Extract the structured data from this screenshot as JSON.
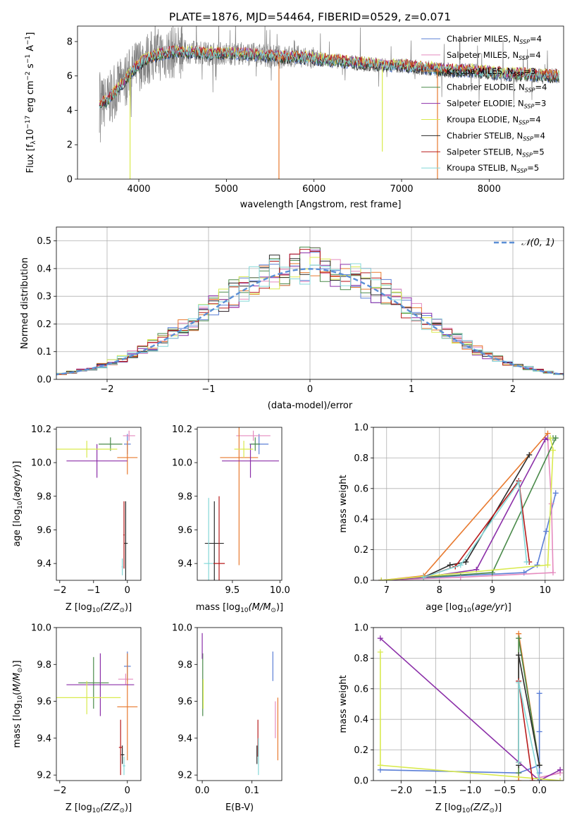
{
  "figure": {
    "title": "PLATE=1876, MJD=54464, FIBERID=0529, z=0.071"
  },
  "colors": {
    "ch_miles": "#5b7fd6",
    "sa_miles": "#e58bbf",
    "kr_miles": "#e87a2f",
    "ch_elodie": "#4a8a4a",
    "sa_elodie": "#8b2fa8",
    "kr_elodie": "#d9ea4e",
    "ch_stelib": "#2a2a2a",
    "sa_stelib": "#b81c1c",
    "kr_stelib": "#84d8d8",
    "data": "#808080",
    "normal": "#5b8fd6"
  },
  "legend": [
    {
      "key": "ch_miles",
      "prefix": "Chabrier MILES, N",
      "sub": "SSP",
      "suffix": "=4"
    },
    {
      "key": "sa_miles",
      "prefix": "Salpeter MILES, N",
      "sub": "SSP",
      "suffix": "=4"
    },
    {
      "key": "kr_miles",
      "prefix": "Kroupa MILES, N",
      "sub": "SSP",
      "suffix": "=3"
    },
    {
      "key": "ch_elodie",
      "prefix": "Chabrier ELODIE, N",
      "sub": "SSP",
      "suffix": "=4"
    },
    {
      "key": "sa_elodie",
      "prefix": "Salpeter ELODIE, N",
      "sub": "SSP",
      "suffix": "=3"
    },
    {
      "key": "kr_elodie",
      "prefix": "Kroupa ELODIE, N",
      "sub": "SSP",
      "suffix": "=4"
    },
    {
      "key": "ch_stelib",
      "prefix": "Chabrier STELIB, N",
      "sub": "SSP",
      "suffix": "=4"
    },
    {
      "key": "sa_stelib",
      "prefix": "Salpeter STELIB, N",
      "sub": "SSP",
      "suffix": "=5"
    },
    {
      "key": "kr_stelib",
      "prefix": "Kroupa STELIB, N",
      "sub": "SSP",
      "suffix": "=5"
    }
  ],
  "chart_data": [
    {
      "id": "spectrum",
      "type": "line",
      "xlabel": "wavelength [Angstrom, rest frame]",
      "ylabel": "Flux [f_λ 10^-17 erg cm^-2 s^-1 A^-1]",
      "xlim": [
        3300,
        8850
      ],
      "ylim": [
        0,
        8.9
      ],
      "xticks": [
        4000,
        5000,
        6000,
        7000,
        8000
      ],
      "yticks": [
        0,
        2,
        4,
        6,
        8
      ],
      "grid": false,
      "legend_position": "top-right",
      "model_continuum": {
        "x": [
          3550,
          3650,
          3750,
          3850,
          3950,
          4050,
          4200,
          4400,
          4600,
          4800,
          5000,
          5200,
          5400,
          5600,
          5800,
          6000,
          6200,
          6400,
          6600,
          6800,
          7000,
          7200,
          7400,
          7600,
          7800,
          8000,
          8200,
          8400,
          8600,
          8800
        ],
        "y": [
          4.3,
          4.6,
          5.2,
          5.8,
          6.4,
          6.9,
          7.2,
          7.4,
          7.4,
          7.3,
          7.3,
          7.3,
          7.2,
          7.1,
          7.1,
          7.0,
          6.9,
          6.8,
          6.7,
          6.6,
          6.6,
          6.5,
          6.4,
          6.3,
          6.3,
          6.2,
          6.1,
          6.1,
          6.0,
          6.0
        ]
      }
    },
    {
      "id": "residuals",
      "type": "histogram",
      "xlabel": "(data-model)/error",
      "ylabel": "Normed distribution",
      "xlim": [
        -2.5,
        2.5
      ],
      "ylim": [
        0,
        0.55
      ],
      "xticks": [
        -2,
        -1,
        0,
        1,
        2
      ],
      "yticks": [
        0.0,
        0.1,
        0.2,
        0.3,
        0.4,
        0.5
      ],
      "grid": true,
      "legend_position": "top-right",
      "reference_label": "𝒩(0, 1)",
      "bin_width": 0.1
    },
    {
      "id": "age_vs_z",
      "type": "scatter",
      "xlabel_prefix": "Z [log",
      "xlabel_suffix": "(Z/Z",
      "xlabel_end": ")]",
      "ylabel": "age  [log10(age/yr)]",
      "xlim": [
        -2.1,
        0.4
      ],
      "ylim": [
        9.3,
        10.21
      ],
      "xticks": [
        -2,
        -1,
        0
      ],
      "yticks": [
        9.4,
        9.6,
        9.8,
        10.0,
        10.2
      ],
      "grid": false,
      "points": [
        {
          "key": "ch_miles",
          "x": 0.0,
          "y": 10.11,
          "xerr": 0.1,
          "yerr": 0.06
        },
        {
          "key": "sa_miles",
          "x": 0.05,
          "y": 10.16,
          "xerr": 0.18,
          "yerr": 0.03
        },
        {
          "key": "kr_miles",
          "x": 0.0,
          "y": 10.03,
          "xerr": 0.3,
          "yerr": 0.1
        },
        {
          "key": "ch_elodie",
          "x": -0.5,
          "y": 10.11,
          "xerr": 0.35,
          "yerr": 0.04
        },
        {
          "key": "sa_elodie",
          "x": -0.9,
          "y": 10.01,
          "xerr": 0.9,
          "yerr": 0.1
        },
        {
          "key": "kr_elodie",
          "x": -1.2,
          "y": 10.08,
          "xerr": 0.9,
          "yerr": 0.05
        },
        {
          "key": "ch_stelib",
          "x": -0.05,
          "y": 9.52,
          "xerr": 0.06,
          "yerr": 0.25
        },
        {
          "key": "sa_stelib",
          "x": -0.1,
          "y": 9.57,
          "xerr": 0.02,
          "yerr": 0.2
        },
        {
          "key": "kr_stelib",
          "x": -0.15,
          "y": 9.38,
          "xerr": 0.02,
          "yerr": 0.05
        }
      ]
    },
    {
      "id": "age_vs_mass",
      "type": "scatter",
      "xlabel_prefix": "mass [log",
      "xlabel_suffix": "(M/M",
      "xlabel_end": ")]",
      "ylabel": "",
      "xlim": [
        9.13,
        10.02
      ],
      "ylim": [
        9.3,
        10.21
      ],
      "xticks": [
        9.5,
        10.0
      ],
      "yticks": [
        9.4,
        9.6,
        9.8,
        10.0,
        10.2
      ],
      "grid": false,
      "points": [
        {
          "key": "ch_miles",
          "x": 9.78,
          "y": 10.11,
          "xerr": 0.1,
          "yerr": 0.06
        },
        {
          "key": "sa_miles",
          "x": 9.72,
          "y": 10.16,
          "xerr": 0.18,
          "yerr": 0.03
        },
        {
          "key": "kr_miles",
          "x": 9.57,
          "y": 10.03,
          "xerr": 0.2,
          "yerr": 0.64
        },
        {
          "key": "ch_elodie",
          "x": 9.74,
          "y": 10.11,
          "xerr": 0.05,
          "yerr": 0.04
        },
        {
          "key": "sa_elodie",
          "x": 9.69,
          "y": 10.01,
          "xerr": 0.3,
          "yerr": 0.1
        },
        {
          "key": "kr_elodie",
          "x": 9.62,
          "y": 10.08,
          "xerr": 0.1,
          "yerr": 0.05
        },
        {
          "key": "ch_stelib",
          "x": 9.31,
          "y": 9.52,
          "xerr": 0.1,
          "yerr": 0.25
        },
        {
          "key": "sa_stelib",
          "x": 9.36,
          "y": 9.4,
          "xerr": 0.06,
          "yerr": 0.4
        },
        {
          "key": "kr_stelib",
          "x": 9.25,
          "y": 9.4,
          "xerr": 0.05,
          "yerr": 0.39
        }
      ]
    },
    {
      "id": "weight_vs_age",
      "type": "line",
      "xlabel": "age  [log10(age/yr)]",
      "ylabel": "mass weight",
      "xlim": [
        6.75,
        10.35
      ],
      "ylim": [
        0,
        1.0
      ],
      "xticks": [
        7,
        8,
        9,
        10
      ],
      "yticks": [
        0.0,
        0.2,
        0.4,
        0.6,
        0.8,
        1.0
      ],
      "grid": true,
      "series": [
        {
          "key": "ch_miles",
          "x": [
            6.9,
            8.4,
            9.6,
            9.85,
            10.02,
            10.2
          ],
          "y": [
            0.0,
            0.03,
            0.05,
            0.1,
            0.32,
            0.57
          ]
        },
        {
          "key": "sa_miles",
          "x": [
            6.9,
            8.4,
            10.15,
            10.12,
            10.05
          ],
          "y": [
            0.0,
            0.02,
            0.05,
            0.5,
            0.92
          ]
        },
        {
          "key": "kr_miles",
          "x": [
            6.9,
            7.7,
            10.05
          ],
          "y": [
            0.0,
            0.03,
            0.96
          ]
        },
        {
          "key": "ch_elodie",
          "x": [
            6.9,
            9.0,
            10.2,
            10.15
          ],
          "y": [
            0.0,
            0.05,
            0.93,
            0.93
          ]
        },
        {
          "key": "sa_elodie",
          "x": [
            6.9,
            7.7,
            8.7,
            10.0,
            10.05
          ],
          "y": [
            0.0,
            0.02,
            0.07,
            0.92,
            0.93
          ]
        },
        {
          "key": "kr_elodie",
          "x": [
            6.9,
            10.05,
            10.15,
            10.1
          ],
          "y": [
            0.0,
            0.1,
            0.85,
            0.93
          ]
        },
        {
          "key": "ch_stelib",
          "x": [
            7.7,
            8.2,
            8.5,
            9.7
          ],
          "y": [
            0.02,
            0.1,
            0.12,
            0.82
          ]
        },
        {
          "key": "sa_stelib",
          "x": [
            7.7,
            8.3,
            9.5,
            9.7
          ],
          "y": [
            0.02,
            0.09,
            0.65,
            0.12
          ]
        },
        {
          "key": "kr_stelib",
          "x": [
            7.7,
            8.4,
            9.5,
            9.65
          ],
          "y": [
            0.02,
            0.1,
            0.64,
            0.12
          ]
        }
      ]
    },
    {
      "id": "mass_vs_z",
      "type": "scatter",
      "xlabel_prefix": "Z [log",
      "xlabel_suffix": "(Z/Z",
      "xlabel_end": ")]",
      "ylabel": "mass [log10(M/M☉)]",
      "xlim": [
        -2.1,
        0.4
      ],
      "ylim": [
        9.17,
        10.0
      ],
      "xticks": [
        -2,
        0
      ],
      "yticks": [
        9.2,
        9.4,
        9.6,
        9.8,
        10.0
      ],
      "grid": false,
      "points": [
        {
          "key": "ch_miles",
          "x": 0.0,
          "y": 9.79,
          "xerr": 0.1,
          "yerr": 0.08
        },
        {
          "key": "sa_miles",
          "x": -0.05,
          "y": 9.72,
          "xerr": 0.22,
          "yerr": 0.03
        },
        {
          "key": "kr_miles",
          "x": 0.0,
          "y": 9.57,
          "xerr": 0.3,
          "yerr": 0.29
        },
        {
          "key": "ch_elodie",
          "x": -1.0,
          "y": 9.7,
          "xerr": 0.45,
          "yerr": 0.14
        },
        {
          "key": "sa_elodie",
          "x": -0.8,
          "y": 9.69,
          "xerr": 1.0,
          "yerr": 0.17
        },
        {
          "key": "kr_elodie",
          "x": -1.2,
          "y": 9.62,
          "xerr": 1.0,
          "yerr": 0.09
        },
        {
          "key": "ch_stelib",
          "x": -0.15,
          "y": 9.31,
          "xerr": 0.06,
          "yerr": 0.05
        },
        {
          "key": "sa_stelib",
          "x": -0.2,
          "y": 9.35,
          "xerr": 0.05,
          "yerr": 0.15
        },
        {
          "key": "kr_stelib",
          "x": -0.1,
          "y": 9.25,
          "xerr": 0.04,
          "yerr": 0.05
        }
      ]
    },
    {
      "id": "mass_vs_ebv",
      "type": "scatter",
      "xlabel": "E(B-V)",
      "ylabel": "",
      "xlim": [
        -0.01,
        0.16
      ],
      "ylim": [
        9.17,
        10.0
      ],
      "xticks": [
        0.0,
        0.1
      ],
      "yticks": [
        9.2,
        9.4,
        9.6,
        9.8,
        10.0
      ],
      "grid": false,
      "points": [
        {
          "key": "ch_miles",
          "x": 0.142,
          "y": 9.79,
          "xerr": 0,
          "yerr": 0.08
        },
        {
          "key": "sa_miles",
          "x": 0.147,
          "y": 9.5,
          "xerr": 0,
          "yerr": 0.1
        },
        {
          "key": "kr_miles",
          "x": 0.152,
          "y": 9.45,
          "xerr": 0,
          "yerr": 0.17
        },
        {
          "key": "ch_elodie",
          "x": 0.001,
          "y": 9.69,
          "xerr": 0,
          "yerr": 0.17
        },
        {
          "key": "sa_elodie",
          "x": 0.0,
          "y": 9.9,
          "xerr": 0,
          "yerr": 0.07
        },
        {
          "key": "kr_elodie",
          "x": 0.002,
          "y": 9.64,
          "xerr": 0,
          "yerr": 0.08
        },
        {
          "key": "ch_stelib",
          "x": 0.11,
          "y": 9.31,
          "xerr": 0,
          "yerr": 0.05
        },
        {
          "key": "sa_stelib",
          "x": 0.112,
          "y": 9.4,
          "xerr": 0,
          "yerr": 0.1
        },
        {
          "key": "kr_stelib",
          "x": 0.113,
          "y": 9.3,
          "xerr": 0,
          "yerr": 0.1
        }
      ]
    },
    {
      "id": "weight_vs_z",
      "type": "line",
      "xlabel_prefix": "Z [log",
      "xlabel_suffix": "(Z/Z",
      "xlabel_end": ")]",
      "ylabel": "mass weight",
      "xlim": [
        -2.4,
        0.35
      ],
      "ylim": [
        0,
        1.0
      ],
      "xticks": [
        -2.0,
        -1.5,
        -1.0,
        -0.5,
        0.0
      ],
      "yticks": [
        0.0,
        0.2,
        0.4,
        0.6,
        0.8,
        1.0
      ],
      "grid": true,
      "series": [
        {
          "key": "ch_miles",
          "x": [
            -2.3,
            -0.3,
            0.0,
            0.0,
            0.0,
            0.0
          ],
          "y": [
            0.07,
            0.05,
            0.1,
            0.32,
            0.57,
            0.05
          ]
        },
        {
          "key": "sa_miles",
          "x": [
            0.0,
            0.3,
            0.3
          ],
          "y": [
            0.02,
            0.05,
            0.07
          ]
        },
        {
          "key": "kr_miles",
          "x": [
            -0.3,
            -0.3,
            0.0
          ],
          "y": [
            0.0,
            0.96,
            0.1
          ]
        },
        {
          "key": "ch_elodie",
          "x": [
            -0.3,
            -0.3,
            0.0
          ],
          "y": [
            0.05,
            0.93,
            0.1
          ]
        },
        {
          "key": "sa_elodie",
          "x": [
            -2.3,
            0.0,
            0.3
          ],
          "y": [
            0.93,
            0.0,
            0.07
          ]
        },
        {
          "key": "kr_elodie",
          "x": [
            -2.3,
            -2.3,
            0.3
          ],
          "y": [
            0.84,
            0.1,
            0.0
          ]
        },
        {
          "key": "ch_stelib",
          "x": [
            -0.3,
            -0.3,
            0.0
          ],
          "y": [
            0.1,
            0.82,
            0.1
          ]
        },
        {
          "key": "sa_stelib",
          "x": [
            -0.3,
            -0.3,
            -0.1
          ],
          "y": [
            0.12,
            0.65,
            0.0
          ]
        },
        {
          "key": "kr_stelib",
          "x": [
            -0.3,
            -0.3,
            0.0
          ],
          "y": [
            0.12,
            0.64,
            0.0
          ]
        }
      ]
    }
  ]
}
